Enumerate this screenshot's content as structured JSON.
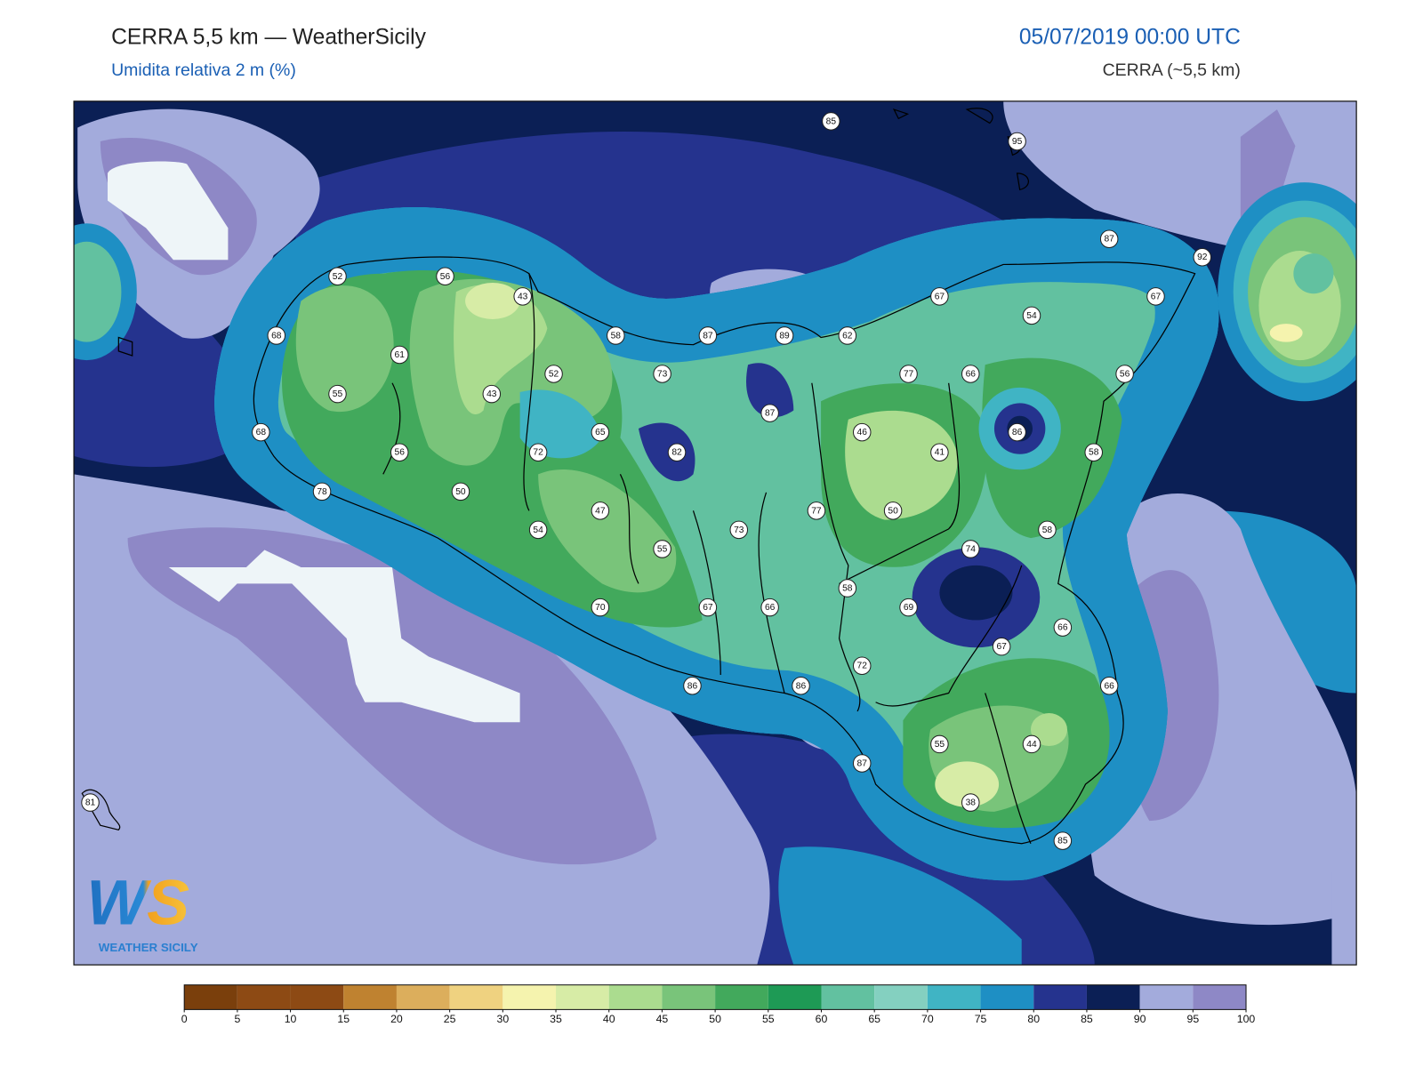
{
  "header": {
    "title": "CERRA 5,5 km — WeatherSicily",
    "subtitle": "Umidita relativa 2 m (%)",
    "datetime": "05/07/2019 00:00 UTC",
    "model": "CERRA (~5,5 km)"
  },
  "map": {
    "stations": [
      85,
      95,
      87,
      92,
      52,
      56,
      43,
      67,
      67,
      54,
      68,
      58,
      87,
      89,
      62,
      61,
      52,
      73,
      77,
      66,
      56,
      55,
      43,
      87,
      65,
      46,
      86,
      68,
      56,
      72,
      82,
      41,
      58,
      78,
      50,
      47,
      77,
      50,
      54,
      73,
      58,
      55,
      74,
      58,
      70,
      67,
      66,
      69,
      66,
      67,
      72,
      86,
      86,
      66,
      55,
      44,
      87,
      38,
      81,
      85
    ]
  },
  "logo": {
    "mark": "WS",
    "text": "WEATHER SICILY"
  },
  "colorbar": {
    "ticks": [
      0,
      5,
      10,
      15,
      20,
      25,
      30,
      35,
      40,
      45,
      50,
      55,
      60,
      65,
      70,
      75,
      80,
      85,
      90,
      95,
      100
    ],
    "colors": [
      "#7a3f0c",
      "#8d4a14",
      "#8d4a14",
      "#bf8230",
      "#dcae5c",
      "#efd280",
      "#f5f3ae",
      "#d7eca6",
      "#abdc8f",
      "#79c47a",
      "#42a95c",
      "#1e9a55",
      "#62c1a0",
      "#84d0c0",
      "#40b4c4",
      "#1e8fc4",
      "#25338e",
      "#0b1f55",
      "#a3abdc",
      "#8e88c6"
    ]
  }
}
